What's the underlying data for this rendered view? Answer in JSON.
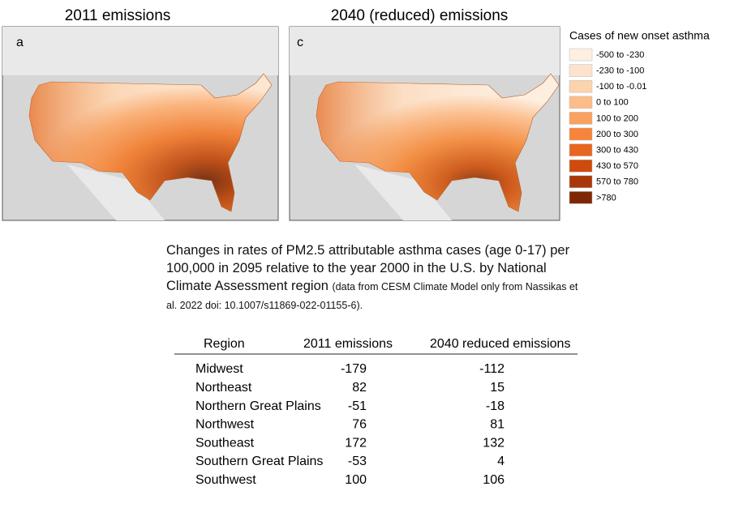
{
  "maps": [
    {
      "title": "2011 emissions",
      "panel": "a"
    },
    {
      "title": "2040 (reduced) emissions",
      "panel": "c"
    }
  ],
  "legend": {
    "title": "Cases of new onset asthma",
    "items": [
      "-500 to -230",
      "-230 to -100",
      "-100 to -0.01",
      "0 to 100",
      "100 to 200",
      "200 to 300",
      "300 to 430",
      "430 to 570",
      "570 to 780",
      ">780"
    ]
  },
  "caption": {
    "main": "Changes in rates of PM2.5 attributable asthma cases (age 0-17) per 100,000 in 2095 relative to the year 2000 in the U.S. by National Climate Assessment region",
    "note": "(data from CESM Climate Model only from Nassikas et al. 2022 doi: 10.1007/s11869-022-01155-6)."
  },
  "table": {
    "header": [
      "Region",
      "2011 emissions",
      "2040 reduced emissions"
    ],
    "rows": [
      [
        "Midwest",
        -179,
        -112
      ],
      [
        "Northeast",
        82,
        15
      ],
      [
        "Northern Great Plains",
        -51,
        -18
      ],
      [
        "Northwest",
        76,
        81
      ],
      [
        "Southeast",
        172,
        132
      ],
      [
        "Southern Great Plains",
        -53,
        4
      ],
      [
        "Southwest",
        100,
        106
      ]
    ]
  }
}
